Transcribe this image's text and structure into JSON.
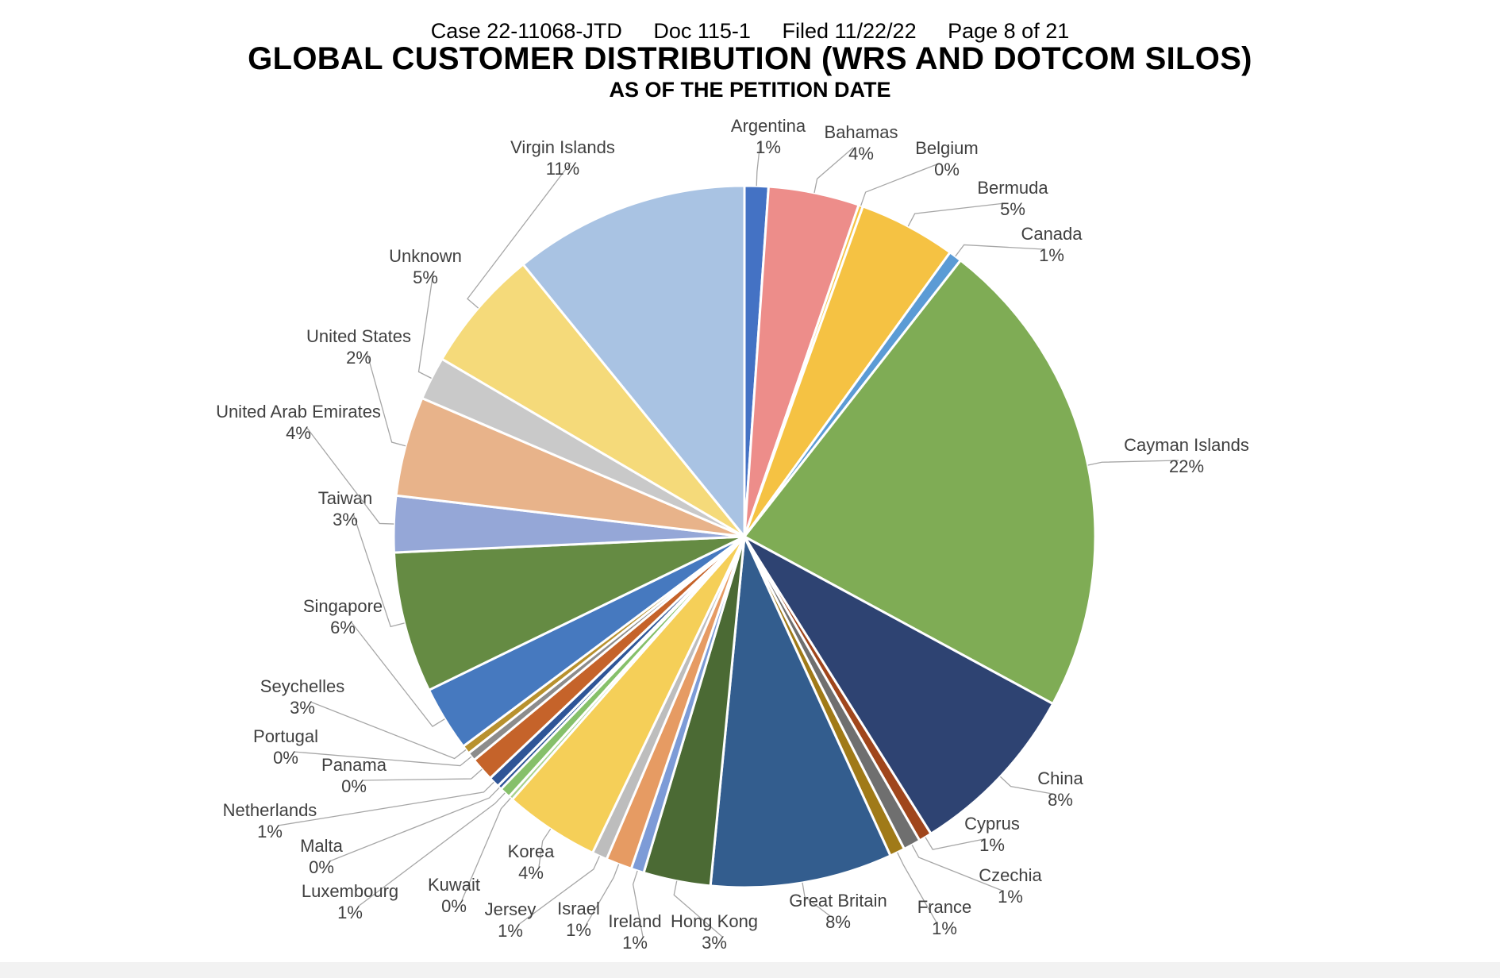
{
  "header": {
    "case": "Case 22-11068-JTD",
    "doc": "Doc 115-1",
    "filed": "Filed 11/22/22",
    "page": "Page 8 of 21"
  },
  "chart_data": {
    "type": "pie",
    "title": "GLOBAL CUSTOMER DISTRIBUTION (WRS AND DOTCOM SILOS)",
    "subtitle": "AS OF THE PETITION DATE",
    "start_angle_deg": 0,
    "direction": "clockwise",
    "slices": [
      {
        "label": "Argentina",
        "pct_label": "1%",
        "value": 1.1,
        "color": "#4472C4"
      },
      {
        "label": "Bahamas",
        "pct_label": "4%",
        "value": 4.2,
        "color": "#ED8D8A"
      },
      {
        "label": "Belgium",
        "pct_label": "0%",
        "value": 0.2,
        "color": "#F5C243"
      },
      {
        "label": "Bermuda",
        "pct_label": "5%",
        "value": 4.5,
        "color": "#F5C243"
      },
      {
        "label": "Canada",
        "pct_label": "1%",
        "value": 0.6,
        "color": "#5B9BD5"
      },
      {
        "label": "Cayman Islands",
        "pct_label": "22%",
        "value": 22.4,
        "color": "#7FAC55"
      },
      {
        "label": "China",
        "pct_label": "8%",
        "value": 8.2,
        "color": "#2E4372"
      },
      {
        "label": "Cyprus",
        "pct_label": "1%",
        "value": 0.6,
        "color": "#A0461C"
      },
      {
        "label": "Czechia",
        "pct_label": "1%",
        "value": 0.8,
        "color": "#6F6F6F"
      },
      {
        "label": "France",
        "pct_label": "1%",
        "value": 0.7,
        "color": "#A07A18"
      },
      {
        "label": "Great Britain",
        "pct_label": "8%",
        "value": 8.4,
        "color": "#335D8E"
      },
      {
        "label": "Hong Kong",
        "pct_label": "3%",
        "value": 3.1,
        "color": "#4B6A34"
      },
      {
        "label": "Ireland",
        "pct_label": "1%",
        "value": 0.6,
        "color": "#7D9BD7"
      },
      {
        "label": "Israel",
        "pct_label": "1%",
        "value": 1.2,
        "color": "#E69B63"
      },
      {
        "label": "Jersey",
        "pct_label": "1%",
        "value": 0.7,
        "color": "#BDBDBD"
      },
      {
        "label": "Korea",
        "pct_label": "4%",
        "value": 4.4,
        "color": "#F5CF58"
      },
      {
        "label": "Kuwait",
        "pct_label": "0%",
        "value": 0.2,
        "color": "#A7D08C"
      },
      {
        "label": "Luxembourg",
        "pct_label": "1%",
        "value": 0.5,
        "color": "#86C06A"
      },
      {
        "label": "Malta",
        "pct_label": "0%",
        "value": 0.2,
        "color": "#2F5597"
      },
      {
        "label": "Netherlands",
        "pct_label": "1%",
        "value": 0.5,
        "color": "#2F5597"
      },
      {
        "label": "Panama",
        "pct_label": "0%",
        "value": 1.1,
        "color": "#C5632A"
      },
      {
        "label": "Portugal",
        "pct_label": "0%",
        "value": 0.4,
        "color": "#8C8C8C"
      },
      {
        "label": "Seychelles",
        "pct_label": "3%",
        "value": 0.4,
        "color": "#B8912E"
      },
      {
        "label": "Singapore",
        "pct_label": "6%",
        "value": 3.0,
        "color": "#4679BF"
      },
      {
        "label": "Taiwan",
        "pct_label": "3%",
        "value": 6.5,
        "color": "#658B43"
      },
      {
        "label": "United Arab Emirates",
        "pct_label": "4%",
        "value": 2.6,
        "color": "#95A7D7"
      },
      {
        "label": "United States",
        "pct_label": "2%",
        "value": 4.6,
        "color": "#E8B38A"
      },
      {
        "label": "Unknown",
        "pct_label": "5%",
        "value": 2.0,
        "color": "#C9C9C9"
      },
      {
        "label": "Virgin Islands",
        "pct_label": "11%",
        "value": 5.7,
        "color": "#F5DA7A"
      },
      {
        "label": "",
        "pct_label": "",
        "value": 10.9,
        "color": "#A9C3E3"
      }
    ]
  }
}
